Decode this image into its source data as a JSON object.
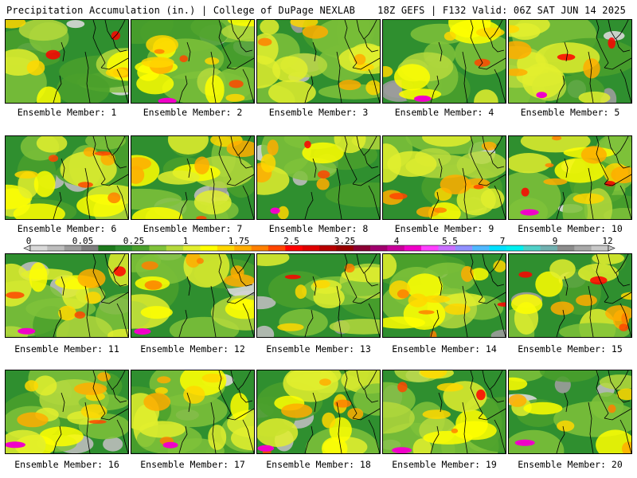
{
  "header": {
    "left": "Precipitation Accumulation (in.) | College of DuPage NEXLAB",
    "right": "18Z GEFS | F132 Valid: 06Z SAT JUN 14 2025"
  },
  "member_label_prefix": "Ensemble Member: ",
  "members": [
    {
      "id": "1"
    },
    {
      "id": "2"
    },
    {
      "id": "3"
    },
    {
      "id": "4"
    },
    {
      "id": "5"
    },
    {
      "id": "6"
    },
    {
      "id": "7"
    },
    {
      "id": "8"
    },
    {
      "id": "9"
    },
    {
      "id": "10"
    },
    {
      "id": "11"
    },
    {
      "id": "12"
    },
    {
      "id": "13"
    },
    {
      "id": "14"
    },
    {
      "id": "15"
    },
    {
      "id": "16"
    },
    {
      "id": "17"
    },
    {
      "id": "18"
    },
    {
      "id": "19"
    },
    {
      "id": "20"
    }
  ],
  "colorbar": {
    "tick_labels": [
      "0",
      "0.05",
      "0.25",
      "1",
      "1.75",
      "2.5",
      "3.25",
      "4",
      "5.5",
      "7",
      "9",
      "12"
    ],
    "colors": [
      "#d9d9d9",
      "#bdbdbd",
      "#9c9c9c",
      "#7e7e7e",
      "#1d7a1d",
      "#2f8f2f",
      "#4aa02c",
      "#7fc23a",
      "#b5d93c",
      "#e2ee2e",
      "#ffff00",
      "#ffd700",
      "#ffad00",
      "#ff8000",
      "#ff4500",
      "#ff0000",
      "#e00000",
      "#b80000",
      "#980000",
      "#8b0034",
      "#a0006e",
      "#c8009a",
      "#f000c8",
      "#ff40ff",
      "#c870ff",
      "#9090ff",
      "#50b8ff",
      "#00e0ff",
      "#00f0f0",
      "#50d0c8",
      "#70b0b0",
      "#8c8c8c",
      "#a8a8a8",
      "#c8c8c8"
    ]
  }
}
